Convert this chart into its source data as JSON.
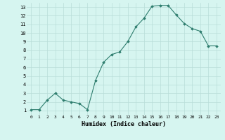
{
  "x": [
    0,
    1,
    2,
    3,
    4,
    5,
    6,
    7,
    8,
    9,
    10,
    11,
    12,
    13,
    14,
    15,
    16,
    17,
    18,
    19,
    20,
    21,
    22,
    23
  ],
  "y": [
    1.1,
    1.1,
    2.2,
    3.0,
    2.2,
    2.0,
    1.8,
    1.1,
    4.5,
    6.6,
    7.5,
    7.8,
    9.0,
    10.7,
    11.7,
    13.1,
    13.2,
    13.2,
    12.1,
    11.1,
    10.5,
    10.2,
    8.5,
    8.5
  ],
  "xlabel": "Humidex (Indice chaleur)",
  "line_color": "#2e7d6e",
  "marker_color": "#2e7d6e",
  "bg_color": "#d6f5f0",
  "grid_color": "#b8ddd8",
  "xlim": [
    -0.5,
    23.5
  ],
  "ylim": [
    0.5,
    13.5
  ],
  "yticks": [
    1,
    2,
    3,
    4,
    5,
    6,
    7,
    8,
    9,
    10,
    11,
    12,
    13
  ],
  "xticks": [
    0,
    1,
    2,
    3,
    4,
    5,
    6,
    7,
    8,
    9,
    10,
    11,
    12,
    13,
    14,
    15,
    16,
    17,
    18,
    19,
    20,
    21,
    22,
    23
  ]
}
